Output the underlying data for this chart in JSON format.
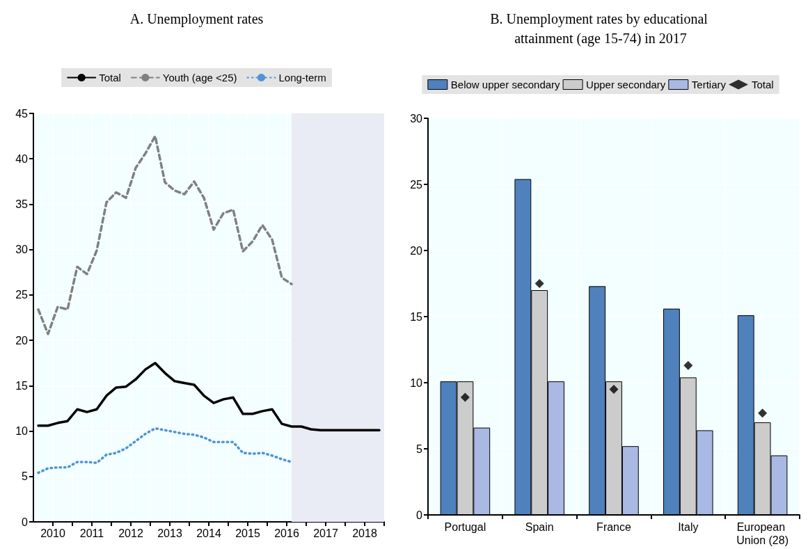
{
  "chart_data": [
    {
      "type": "line",
      "title": "A. Unemployment rates",
      "x": [
        2010.125,
        2010.375,
        2010.625,
        2010.875,
        2011.125,
        2011.375,
        2011.625,
        2011.875,
        2012.125,
        2012.375,
        2012.625,
        2012.875,
        2013.125,
        2013.375,
        2013.625,
        2013.875,
        2014.125,
        2014.375,
        2014.625,
        2014.875,
        2015.125,
        2015.375,
        2015.625,
        2015.875,
        2016.125,
        2016.375,
        2016.625,
        2016.875,
        2017.125,
        2017.375,
        2017.625,
        2017.875,
        2018.125,
        2018.375,
        2018.625,
        2018.875
      ],
      "series": [
        {
          "name": "Total",
          "color": "#000000",
          "line_style": "solid",
          "values": [
            10.6,
            10.6,
            10.9,
            11.1,
            12.4,
            12.1,
            12.4,
            13.9,
            14.8,
            14.9,
            15.7,
            16.8,
            17.5,
            16.4,
            15.5,
            15.3,
            15.1,
            13.9,
            13.1,
            13.5,
            13.7,
            11.9,
            11.9,
            12.2,
            12.4,
            10.8,
            10.5,
            10.5,
            10.2,
            10.1,
            10.1,
            10.1,
            10.1,
            10.1,
            10.1,
            10.1
          ]
        },
        {
          "name": "Youth (age <25)",
          "color": "#808080",
          "line_style": "dashed",
          "values": [
            23.4,
            20.7,
            23.7,
            23.4,
            28.1,
            27.3,
            29.9,
            35.2,
            36.3,
            35.7,
            39.0,
            40.6,
            42.5,
            37.4,
            36.5,
            36.1,
            37.5,
            35.7,
            32.2,
            34.0,
            34.4,
            29.8,
            30.9,
            32.7,
            31.1,
            26.9,
            26.2,
            null,
            null,
            null,
            null,
            null,
            null,
            null,
            null,
            null
          ]
        },
        {
          "name": "Long-term",
          "color": "#4f93d8",
          "line_style": "dotted",
          "values": [
            5.4,
            5.9,
            6.0,
            6.0,
            6.6,
            6.6,
            6.5,
            7.4,
            7.6,
            8.1,
            8.9,
            9.7,
            10.3,
            10.1,
            9.9,
            9.7,
            9.6,
            9.3,
            8.8,
            8.8,
            8.8,
            7.6,
            7.5,
            7.6,
            7.3,
            6.9,
            6.6,
            null,
            null,
            null,
            null,
            null,
            null,
            null,
            null,
            null
          ]
        }
      ],
      "xlim": [
        2010,
        2019
      ],
      "xticks": [
        {
          "value": 2010.5,
          "label": "2010"
        },
        {
          "value": 2011,
          "label": null
        },
        {
          "value": 2011.5,
          "label": "2011"
        },
        {
          "value": 2012,
          "label": null
        },
        {
          "value": 2012.5,
          "label": "2012"
        },
        {
          "value": 2013,
          "label": null
        },
        {
          "value": 2013.5,
          "label": "2013"
        },
        {
          "value": 2014,
          "label": null
        },
        {
          "value": 2014.5,
          "label": "2014"
        },
        {
          "value": 2015,
          "label": null
        },
        {
          "value": 2015.5,
          "label": "2015"
        },
        {
          "value": 2016,
          "label": null
        },
        {
          "value": 2016.5,
          "label": "2016"
        },
        {
          "value": 2017,
          "label": null
        },
        {
          "value": 2017.5,
          "label": "2017"
        },
        {
          "value": 2018,
          "label": null
        },
        {
          "value": 2018.5,
          "label": "2018"
        },
        {
          "value": 2019,
          "label": null
        }
      ],
      "ylim": [
        0,
        45
      ],
      "yticks": [
        0,
        5,
        10,
        15,
        20,
        25,
        30,
        35,
        40,
        45
      ],
      "bands": [
        {
          "axis": "x",
          "from": 2016.625,
          "to": 2019,
          "color": "#e9ebf5"
        }
      ],
      "grid": true,
      "legend": "top"
    },
    {
      "type": "bar",
      "title": "B. Unemployment rates by educational attainment (age 15-74) in 2017",
      "categories": [
        "Portugal",
        "Spain",
        "France",
        "Italy",
        "European Union (28)"
      ],
      "series": [
        {
          "name": "Below upper secondary",
          "color": "#4f81bd",
          "values": [
            10.1,
            25.4,
            17.3,
            15.6,
            15.1
          ]
        },
        {
          "name": "Upper secondary",
          "color": "#cccccc",
          "values": [
            10.1,
            17.0,
            10.1,
            10.4,
            7.0
          ]
        },
        {
          "name": "Tertiary",
          "color": "#a9b9e3",
          "values": [
            6.6,
            10.1,
            5.2,
            6.4,
            4.5
          ]
        },
        {
          "name": "Total",
          "type": "scatter",
          "marker": "diamond",
          "color": "#000000",
          "x": [
            "Portugal",
            "Spain",
            "France",
            "Italy",
            "European Union (28)"
          ],
          "values": [
            8.9,
            17.5,
            9.5,
            11.3,
            7.7
          ]
        }
      ],
      "ylim": [
        0,
        30
      ],
      "yticks": [
        0,
        5,
        10,
        15,
        20,
        25,
        30
      ],
      "grid": true,
      "legend": "top"
    }
  ]
}
